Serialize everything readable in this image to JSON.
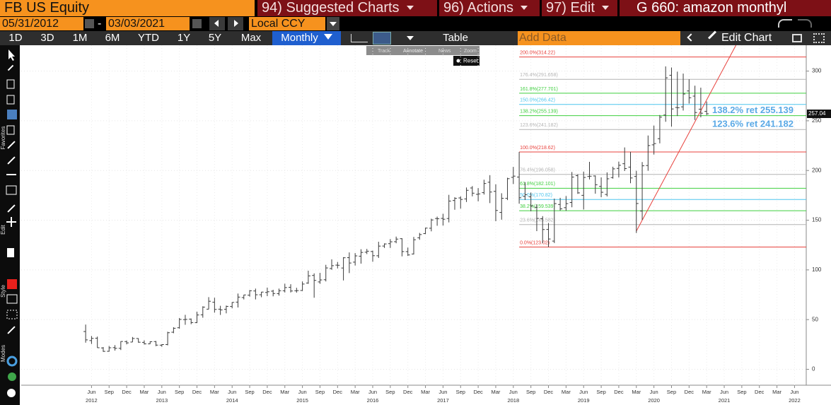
{
  "header": {
    "security": "FB US Equity",
    "menus": [
      "94) Suggested Charts",
      "96) Actions",
      "97) Edit"
    ],
    "title": "G 660: amazon monthyl"
  },
  "controls": {
    "start_date": "05/31/2012",
    "date_sep": "-",
    "end_date": "03/03/2021",
    "currency": "Local CCY",
    "ranges": [
      "1D",
      "3D",
      "1M",
      "6M",
      "YTD",
      "1Y",
      "5Y",
      "Max"
    ],
    "frequency": "Monthly",
    "table": "Table",
    "add_data": "Add Data",
    "edit_chart": "Edit Chart"
  },
  "chart_tools": [
    "Track",
    "Annotate",
    "News",
    "Zoom"
  ],
  "reset": "Reset",
  "sidebar": [
    "Favorites",
    "Edit",
    "Style",
    "Modes"
  ],
  "chart_data": {
    "type": "ohlc",
    "color": "#3a3a3a",
    "x": [
      "2012-05",
      "2012-06",
      "2012-07",
      "2012-08",
      "2012-09",
      "2012-10",
      "2012-11",
      "2012-12",
      "2013-01",
      "2013-02",
      "2013-03",
      "2013-04",
      "2013-05",
      "2013-06",
      "2013-07",
      "2013-08",
      "2013-09",
      "2013-10",
      "2013-11",
      "2013-12",
      "2014-01",
      "2014-02",
      "2014-03",
      "2014-04",
      "2014-05",
      "2014-06",
      "2014-07",
      "2014-08",
      "2014-09",
      "2014-10",
      "2014-11",
      "2014-12",
      "2015-01",
      "2015-02",
      "2015-03",
      "2015-04",
      "2015-05",
      "2015-06",
      "2015-07",
      "2015-08",
      "2015-09",
      "2015-10",
      "2015-11",
      "2015-12",
      "2016-01",
      "2016-02",
      "2016-03",
      "2016-04",
      "2016-05",
      "2016-06",
      "2016-07",
      "2016-08",
      "2016-09",
      "2016-10",
      "2016-11",
      "2016-12",
      "2017-01",
      "2017-02",
      "2017-03",
      "2017-04",
      "2017-05",
      "2017-06",
      "2017-07",
      "2017-08",
      "2017-09",
      "2017-10",
      "2017-11",
      "2017-12",
      "2018-01",
      "2018-02",
      "2018-03",
      "2018-04",
      "2018-05",
      "2018-06",
      "2018-07",
      "2018-08",
      "2018-09",
      "2018-10",
      "2018-11",
      "2018-12",
      "2019-01",
      "2019-02",
      "2019-03",
      "2019-04",
      "2019-05",
      "2019-06",
      "2019-07",
      "2019-08",
      "2019-09",
      "2019-10",
      "2019-11",
      "2019-12",
      "2020-01",
      "2020-02",
      "2020-03",
      "2020-04",
      "2020-05",
      "2020-06",
      "2020-07",
      "2020-08",
      "2020-09",
      "2020-10",
      "2020-11",
      "2020-12",
      "2021-01",
      "2021-02",
      "2021-03"
    ],
    "open": [
      38,
      28.9,
      31.3,
      21.5,
      18.1,
      21.8,
      21.1,
      27.9,
      27.4,
      31.0,
      27.1,
      25.6,
      27.9,
      24.3,
      24.9,
      37.3,
      41.8,
      50.0,
      50.5,
      46.9,
      54.8,
      60.5,
      67.5,
      60.5,
      60.4,
      63.2,
      67.6,
      72.2,
      74.6,
      78.8,
      75.0,
      77.3,
      78.6,
      76.1,
      79.0,
      82.5,
      79.0,
      79.3,
      86.8,
      94.4,
      87.9,
      90.1,
      101.4,
      104.8,
      101.9,
      112.3,
      107.8,
      113.8,
      117.8,
      118.5,
      114.2,
      124.0,
      126.4,
      128.4,
      131.4,
      118.4,
      116.0,
      132.3,
      136.5,
      141.9,
      151.7,
      151.8,
      151.7,
      169.8,
      172.4,
      171.4,
      182.4,
      176.0,
      177.7,
      188.2,
      179.0,
      157.8,
      172.0,
      193.1,
      193.4,
      173.9,
      173.5,
      163.0,
      151.5,
      140.7,
      128.99,
      165.8,
      162.6,
      167.8,
      194.8,
      175.0,
      194.0,
      194.5,
      184.0,
      175.9,
      192.9,
      202.1,
      206.8,
      203.4,
      194.0,
      159.2,
      205.0,
      225.8,
      232.0,
      255.8,
      295.8,
      263.4,
      264.0,
      280.0,
      274.8,
      261.7,
      259.5
    ],
    "high": [
      45,
      33.5,
      32.9,
      22.4,
      23.4,
      24.3,
      28.2,
      28.9,
      32.5,
      31.2,
      29.1,
      28.1,
      28.5,
      25.2,
      37.8,
      42.3,
      51.6,
      54.8,
      51.1,
      57.9,
      63.4,
      72.6,
      72.0,
      63.9,
      64.1,
      67.6,
      76.2,
      75.0,
      79.7,
      81.2,
      77.9,
      82.2,
      80.0,
      81.2,
      86.1,
      85.6,
      82.0,
      88.4,
      99.2,
      96.5,
      97.0,
      105.1,
      110.6,
      108.0,
      112.8,
      117.6,
      116.9,
      120.8,
      121.1,
      119.4,
      128.3,
      126.7,
      131.0,
      133.5,
      131.9,
      122.5,
      133.1,
      137.2,
      142.5,
      151.5,
      153.6,
      156.5,
      175.5,
      173.1,
      174.0,
      182.9,
      184.3,
      182.3,
      190.7,
      195.3,
      186.1,
      177.1,
      192.7,
      203.6,
      218.62,
      188.3,
      177.8,
      165.9,
      154.1,
      147.2,
      171.7,
      172.5,
      174.3,
      198.5,
      196.2,
      198.9,
      208.7,
      195.0,
      193.1,
      198.1,
      203.8,
      208.9,
      223.2,
      218.8,
      199.7,
      208.5,
      235.2,
      245.2,
      255.8,
      304.7,
      303.6,
      299.4,
      297.5,
      291.8,
      285.3,
      283.3,
      269.4
    ],
    "low": [
      26.8,
      25.5,
      21.6,
      17.6,
      17.7,
      18.8,
      19.4,
      25.1,
      27.4,
      26.8,
      25.0,
      25.4,
      23.3,
      22.7,
      24.1,
      36.3,
      40.9,
      44.8,
      45.4,
      46.5,
      51.9,
      60.4,
      57.0,
      54.7,
      56.3,
      61.4,
      62.2,
      70.3,
      73.1,
      70.3,
      72.5,
      73.6,
      73.4,
      74.1,
      77.3,
      77.3,
      77.1,
      78.8,
      86.0,
      72.0,
      86.0,
      88.4,
      100.1,
      101.5,
      89.4,
      96.8,
      104.4,
      106.3,
      115.9,
      108.2,
      112.0,
      122.1,
      122.1,
      126.8,
      113.6,
      114.0,
      115.5,
      130.3,
      136.0,
      138.8,
      144.4,
      144.6,
      147.8,
      160.5,
      161.6,
      168.3,
      174.0,
      169.0,
      175.8,
      167.2,
      149.0,
      150.5,
      170.2,
      186.4,
      166.6,
      170.3,
      158.9,
      139.0,
      126.9,
      123.02,
      127.0,
      159.6,
      159.3,
      163.0,
      176.5,
      160.8,
      191.0,
      176.7,
      173.1,
      173.9,
      191.8,
      193.0,
      199.5,
      187.2,
      137.1,
      150.3,
      199.7,
      216.0,
      227.3,
      249.0,
      244.1,
      254.8,
      260.3,
      267.3,
      250.8,
      253.5,
      255.8
    ],
    "close": [
      29.6,
      31.1,
      21.7,
      18.06,
      21.66,
      21.11,
      28.0,
      26.6,
      31.0,
      27.25,
      25.58,
      27.77,
      24.35,
      24.88,
      36.8,
      41.3,
      50.2,
      50.2,
      47.0,
      54.65,
      62.57,
      68.46,
      60.24,
      59.78,
      63.3,
      67.29,
      72.65,
      74.82,
      79.04,
      74.99,
      77.7,
      78.02,
      76.24,
      78.97,
      82.22,
      78.77,
      79.19,
      85.77,
      94.01,
      89.43,
      89.9,
      101.97,
      104.24,
      104.66,
      112.21,
      106.92,
      114.1,
      117.58,
      118.81,
      114.28,
      123.94,
      126.12,
      128.27,
      130.99,
      118.42,
      115.05,
      130.32,
      135.54,
      142.05,
      150.25,
      151.46,
      150.98,
      169.25,
      171.97,
      170.87,
      180.06,
      177.18,
      176.46,
      186.89,
      178.32,
      159.79,
      172.0,
      191.78,
      194.32,
      172.58,
      175.73,
      164.46,
      151.79,
      140.61,
      131.09,
      166.69,
      161.45,
      166.69,
      193.4,
      177.47,
      193.0,
      194.23,
      185.67,
      178.08,
      191.65,
      201.64,
      205.25,
      201.91,
      192.47,
      166.8,
      204.71,
      225.09,
      227.07,
      253.67,
      293.2,
      261.9,
      263.11,
      276.97,
      273.16,
      258.33,
      257.62,
      257.04
    ],
    "xlim": [
      "2011-06",
      "2022-08"
    ],
    "xticks": [
      {
        "value": "2012-06",
        "label": "Jun"
      },
      {
        "value": "2012-09",
        "label": "Sep"
      },
      {
        "value": "2012-12",
        "label": "Dec"
      },
      {
        "value": "2013-03",
        "label": "Mar"
      },
      {
        "value": "2013-06",
        "label": "Jun"
      },
      {
        "value": "2013-09",
        "label": "Sep"
      },
      {
        "value": "2013-12",
        "label": "Dec"
      },
      {
        "value": "2014-03",
        "label": "Mar"
      },
      {
        "value": "2014-06",
        "label": "Jun"
      },
      {
        "value": "2014-09",
        "label": "Sep"
      },
      {
        "value": "2014-12",
        "label": "Dec"
      },
      {
        "value": "2015-03",
        "label": "Mar"
      },
      {
        "value": "2015-06",
        "label": "Jun"
      },
      {
        "value": "2015-09",
        "label": "Sep"
      },
      {
        "value": "2015-12",
        "label": "Dec"
      },
      {
        "value": "2016-03",
        "label": "Mar"
      },
      {
        "value": "2016-06",
        "label": "Jun"
      },
      {
        "value": "2016-09",
        "label": "Sep"
      },
      {
        "value": "2016-12",
        "label": "Dec"
      },
      {
        "value": "2017-03",
        "label": "Mar"
      },
      {
        "value": "2017-06",
        "label": "Jun"
      },
      {
        "value": "2017-09",
        "label": "Sep"
      },
      {
        "value": "2017-12",
        "label": "Dec"
      },
      {
        "value": "2018-03",
        "label": "Mar"
      },
      {
        "value": "2018-06",
        "label": "Jun"
      },
      {
        "value": "2018-09",
        "label": "Sep"
      },
      {
        "value": "2018-12",
        "label": "Dec"
      },
      {
        "value": "2019-03",
        "label": "Mar"
      },
      {
        "value": "2019-06",
        "label": "Jun"
      },
      {
        "value": "2019-09",
        "label": "Sep"
      },
      {
        "value": "2019-12",
        "label": "Dec"
      },
      {
        "value": "2020-03",
        "label": "Mar"
      },
      {
        "value": "2020-06",
        "label": "Jun"
      },
      {
        "value": "2020-09",
        "label": "Sep"
      },
      {
        "value": "2020-12",
        "label": "Dec"
      },
      {
        "value": "2021-03",
        "label": "Mar"
      },
      {
        "value": "2021-06",
        "label": "Jun"
      },
      {
        "value": "2021-09",
        "label": "Sep"
      },
      {
        "value": "2021-12",
        "label": "Dec"
      },
      {
        "value": "2022-03",
        "label": "Mar"
      },
      {
        "value": "2022-06",
        "label": "Jun"
      }
    ],
    "xyears": [
      "2012",
      "2013",
      "2014",
      "2015",
      "2016",
      "2017",
      "2018",
      "2019",
      "2020",
      "2021",
      "2022"
    ],
    "ylim": [
      -16,
      326
    ],
    "yticks": [
      0,
      50,
      100,
      150,
      200,
      250,
      300
    ],
    "grid": true,
    "levels_from": "2018-07",
    "levels": [
      {
        "value": 314.22,
        "label": "200.0%(314.22)",
        "color": "#e8413c"
      },
      {
        "value": 291.658,
        "label": "176.4%(291.658)",
        "color": "#b4b4b4"
      },
      {
        "value": 277.701,
        "label": "161.8%(277.701)",
        "color": "#3fcf3f"
      },
      {
        "value": 266.42,
        "label": "150.0%(266.42)",
        "color": "#4fc6ee"
      },
      {
        "value": 255.139,
        "label": "138.2%(255.139)",
        "color": "#3fcf3f"
      },
      {
        "value": 241.182,
        "label": "123.6%(241.182)",
        "color": "#b4b4b4"
      },
      {
        "value": 218.62,
        "label": "100.0%(218.62)",
        "color": "#e8413c"
      },
      {
        "value": 196.058,
        "label": "76.4%(196.058)",
        "color": "#b4b4b4"
      },
      {
        "value": 182.101,
        "label": "61.8%(182.101)",
        "color": "#3fcf3f"
      },
      {
        "value": 170.82,
        "label": "50.0%(170.82)",
        "color": "#4fc6ee"
      },
      {
        "value": 159.539,
        "label": "38.2%(159.539)",
        "color": "#3fcf3f"
      },
      {
        "value": 145.582,
        "label": "23.6%(145.582)",
        "color": "#b4b4b4"
      },
      {
        "value": 123.02,
        "label": "0.0%(123.02)",
        "color": "#e8413c"
      }
    ],
    "annotations": [
      {
        "text": "138.2% ret 255.139",
        "value": 255.139
      },
      {
        "text": "123.6% ret 241.182",
        "value": 241.182
      }
    ],
    "trendline": {
      "x": [
        "2020-03",
        "2021-08"
      ],
      "y": [
        139,
        326
      ],
      "color": "#e8413c"
    }
  }
}
